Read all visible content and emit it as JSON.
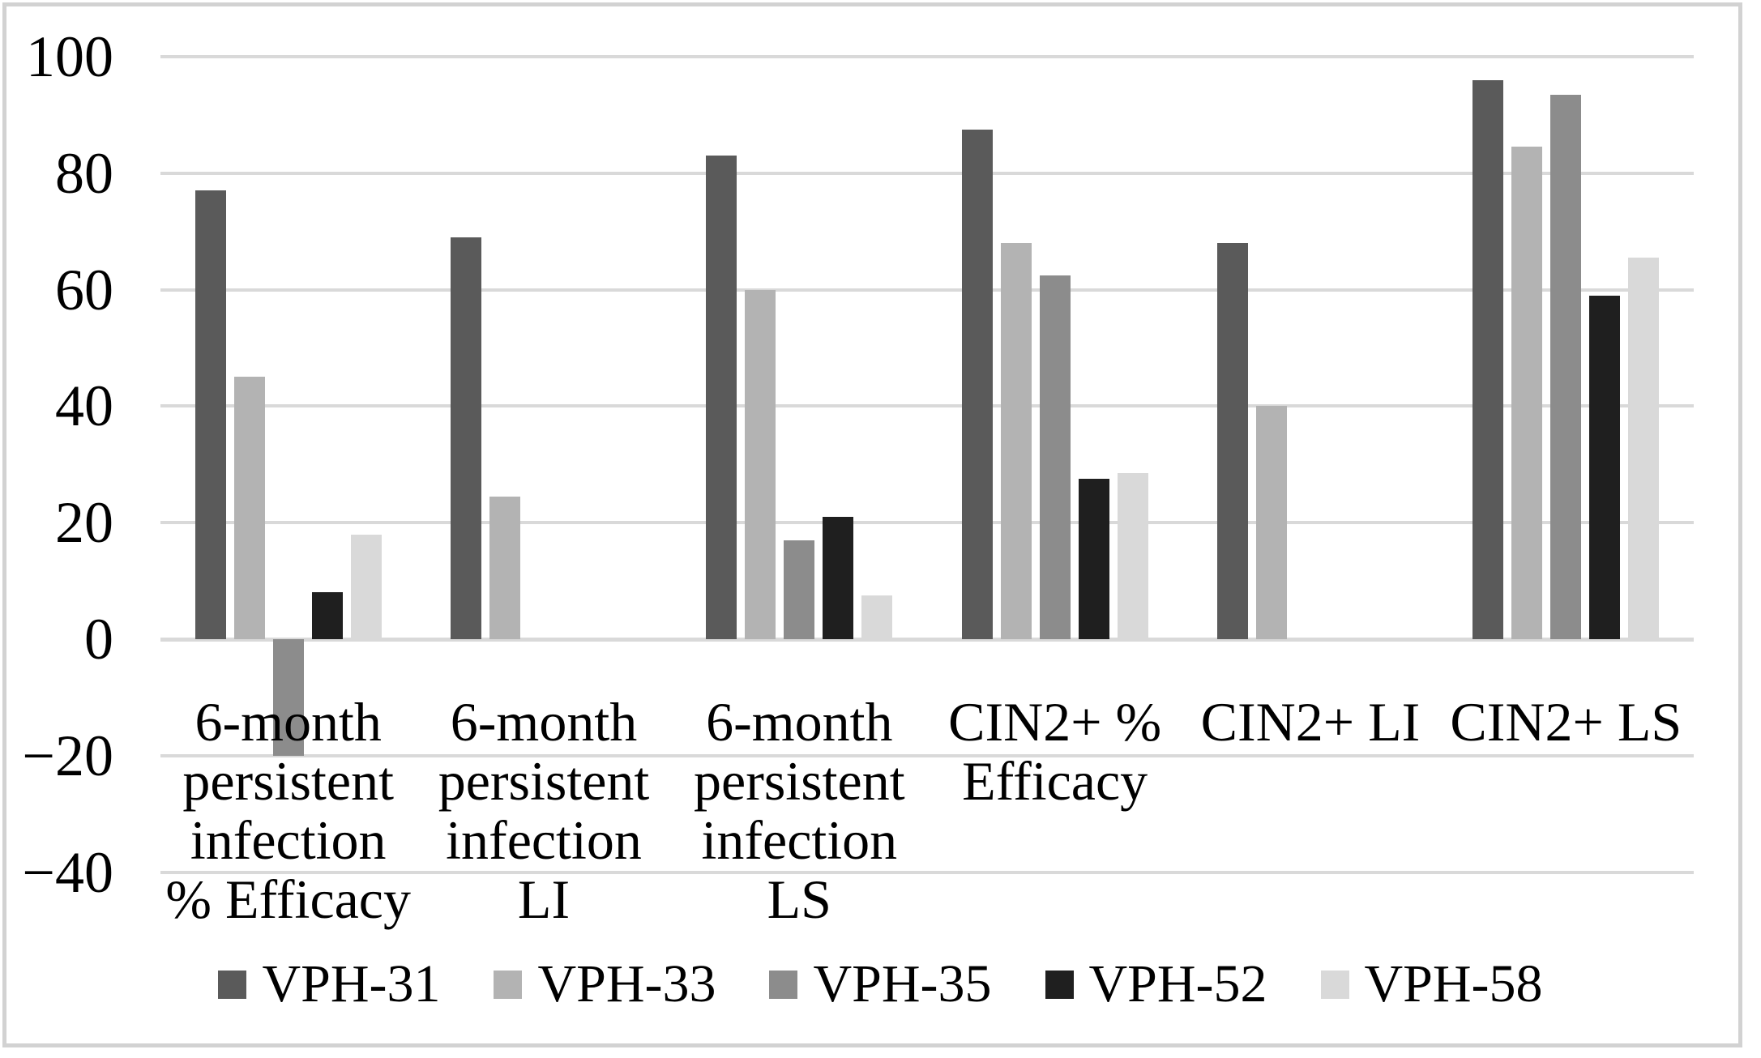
{
  "figure": {
    "background": "#ffffff",
    "border_color": "#d2d2d2"
  },
  "chart_data": {
    "type": "bar",
    "title": "",
    "xlabel": "",
    "ylabel": "",
    "categories": [
      "6-month persistent infection % Efficacy",
      "6-month persistent infection LI",
      "6-month persistent infection LS",
      "CIN2+ % Efficacy",
      "CIN2+ LI",
      "CIN2+ LS"
    ],
    "category_label_lines": [
      [
        "6-month",
        "persistent",
        "infection",
        "% Efficacy"
      ],
      [
        "6-month",
        "persistent",
        "infection",
        "LI"
      ],
      [
        "6-month",
        "persistent",
        "infection",
        "LS"
      ],
      [
        "CIN2+ %",
        "Efficacy"
      ],
      [
        "CIN2+ LI"
      ],
      [
        "CIN2+ LS"
      ]
    ],
    "series": [
      {
        "name": "VPH-31",
        "color": "#5a5a5a",
        "values": [
          77,
          69,
          83,
          87.5,
          68,
          96
        ]
      },
      {
        "name": "VPH-33",
        "color": "#b3b3b3",
        "values": [
          45,
          24.5,
          60,
          68,
          40,
          84.5
        ]
      },
      {
        "name": "VPH-35",
        "color": "#8c8c8c",
        "values": [
          -20,
          null,
          17,
          62.5,
          null,
          93.5
        ]
      },
      {
        "name": "VPH-52",
        "color": "#1f1f1f",
        "values": [
          8,
          null,
          21,
          27.5,
          null,
          59
        ]
      },
      {
        "name": "VPH-58",
        "color": "#d9d9d9",
        "values": [
          18,
          null,
          7.5,
          28.5,
          null,
          65.5
        ]
      }
    ],
    "ylim": [
      -40,
      100
    ],
    "yticks": [
      100,
      80,
      60,
      40,
      20,
      0,
      -20,
      -40
    ],
    "ytick_labels": [
      "100",
      "80",
      "60",
      "40",
      "20",
      "0",
      "-20",
      "-40"
    ],
    "grid": true,
    "gridline_color": "#d9d9d9",
    "axis_text_color": "#000000",
    "legend_position": "bottom",
    "legend": [
      "VPH-31",
      "VPH-33",
      "VPH-35",
      "VPH-52",
      "VPH-58"
    ]
  }
}
